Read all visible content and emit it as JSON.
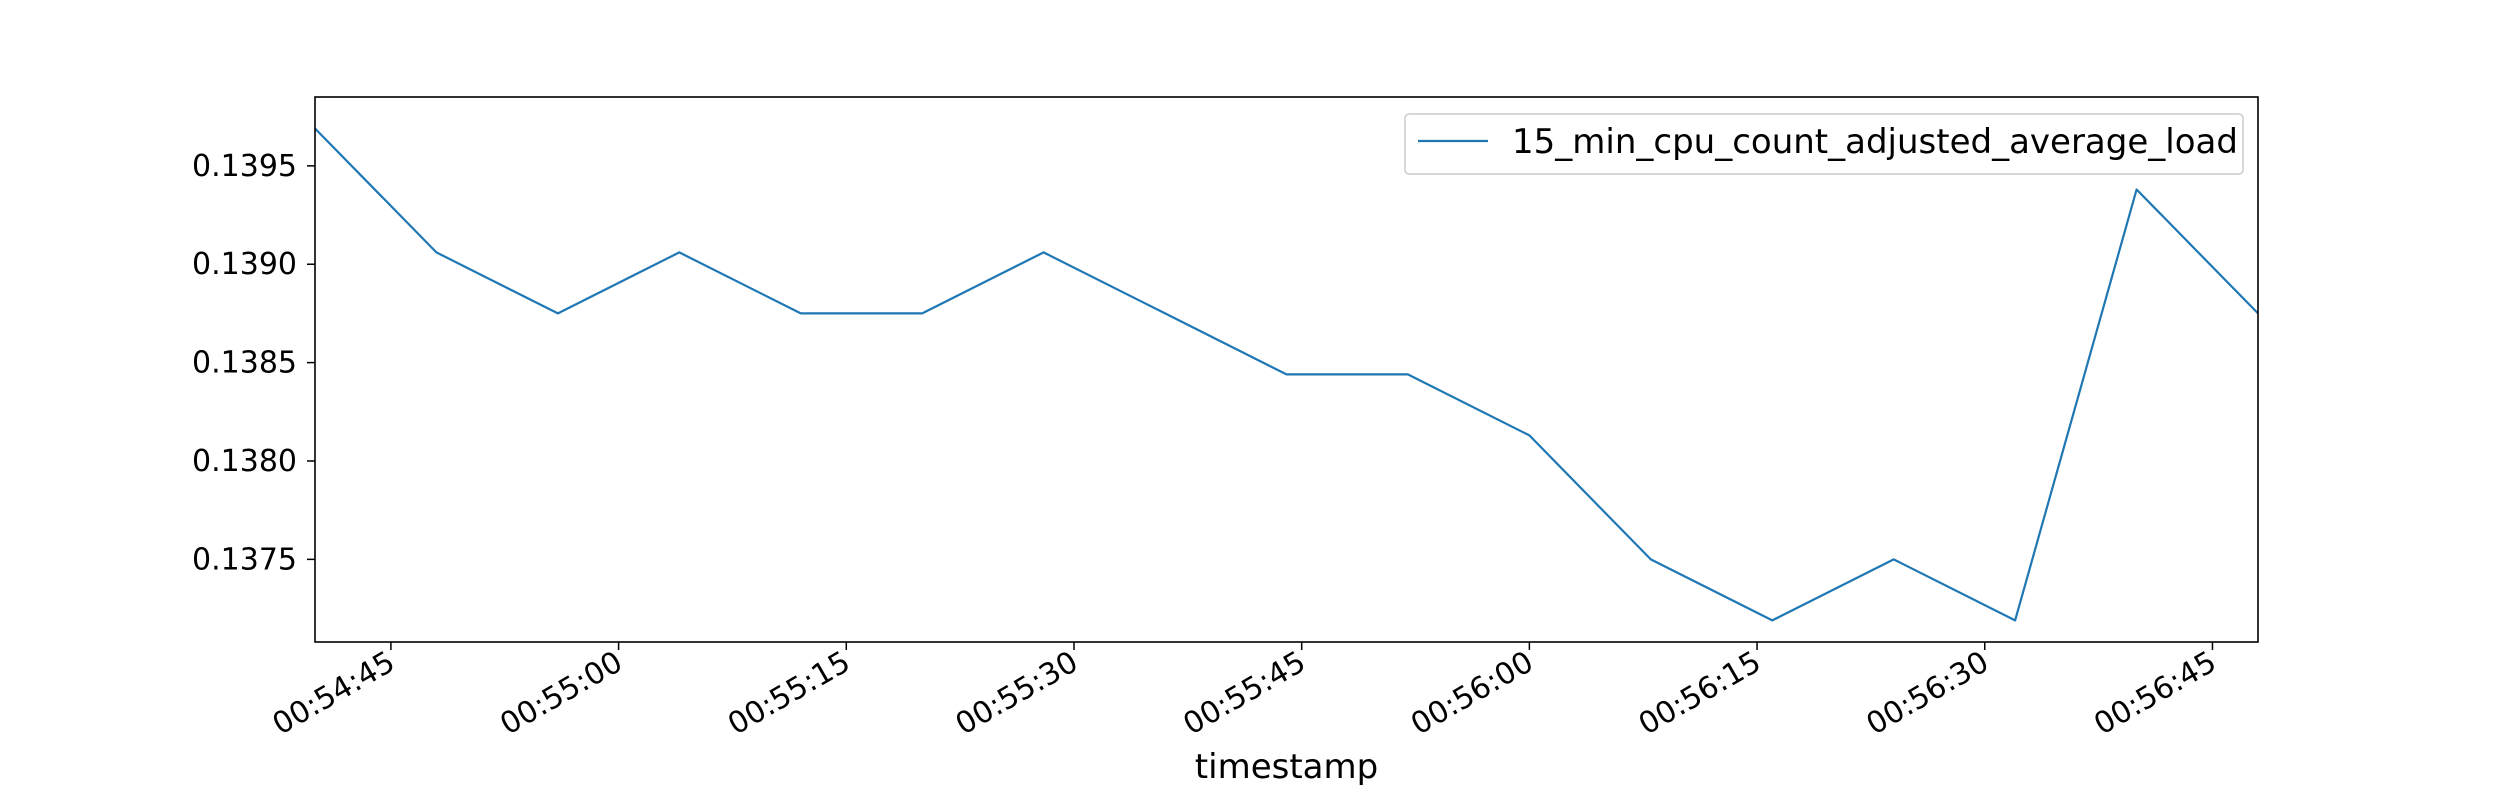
{
  "chart_data": {
    "type": "line",
    "title": "",
    "xlabel": "timestamp",
    "ylabel": "",
    "series": [
      {
        "name": "15_min_cpu_count_adjusted_average_load",
        "color": "#1f77b4",
        "x": [
          "00:54:40",
          "00:54:48",
          "00:54:56",
          "00:55:04",
          "00:55:12",
          "00:55:20",
          "00:55:28",
          "00:55:36",
          "00:55:44",
          "00:55:52",
          "00:56:00",
          "00:56:08",
          "00:56:16",
          "00:56:24",
          "00:56:32",
          "00:56:40",
          "00:56:48"
        ],
        "values": [
          0.13969,
          0.13906,
          0.13875,
          0.13906,
          0.13875,
          0.13875,
          0.13906,
          0.13875,
          0.13844,
          0.13844,
          0.13813,
          0.1375,
          0.13719,
          0.1375,
          0.13719,
          0.13938,
          0.13875
        ]
      }
    ],
    "xlim": [
      "00:54:40",
      "00:56:48"
    ],
    "ylim": [
      0.13708,
      0.13985
    ],
    "xticks": [
      "00:54:45",
      "00:55:00",
      "00:55:15",
      "00:55:30",
      "00:55:45",
      "00:56:00",
      "00:56:15",
      "00:56:30",
      "00:56:45"
    ],
    "yticks": [
      "0.1375",
      "0.1380",
      "0.1385",
      "0.1390",
      "0.1395"
    ],
    "grid": false,
    "legend_position": "top-right"
  }
}
